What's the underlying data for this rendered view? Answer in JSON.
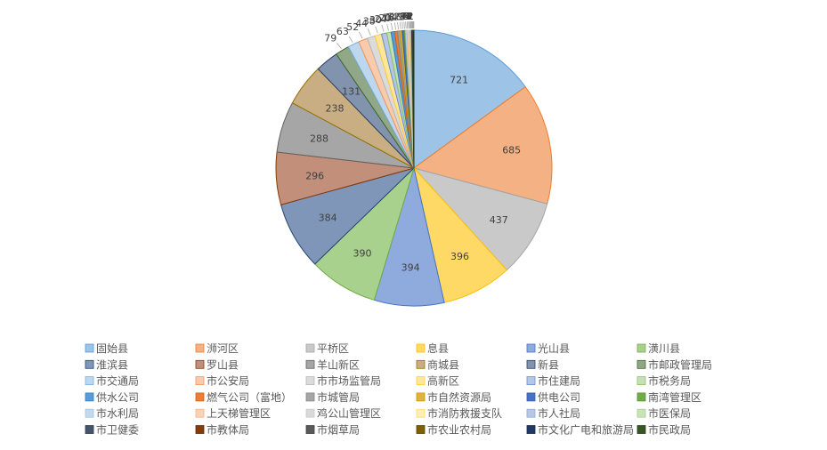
{
  "chart_data": {
    "type": "pie",
    "title": "",
    "legend_position": "bottom",
    "categories": [
      "固始县",
      "浉河区",
      "平桥区",
      "息县",
      "光山县",
      "潢川县",
      "淮滨县",
      "罗山县",
      "羊山新区",
      "商城县",
      "新县",
      "市邮政管理局",
      "市交通局",
      "市公安局",
      "市市场监管局",
      "高新区",
      "市住建局",
      "市税务局",
      "供水公司",
      "燃气公司（富地）",
      "市城管局",
      "市自然资源局",
      "供电公司",
      "南湾管理区",
      "市水利局",
      "上天梯管理区",
      "鸡公山管理区",
      "市消防救援支队",
      "市人社局",
      "市医保局",
      "市卫健委",
      "市教体局",
      "市烟草局",
      "市农业农村局",
      "市文化广电和旅游局",
      "市民政局"
    ],
    "values": [
      721,
      685,
      437,
      396,
      394,
      390,
      384,
      296,
      288,
      238,
      131,
      79,
      63,
      52,
      44,
      38,
      30,
      24,
      20,
      16,
      14,
      12,
      10,
      9,
      8,
      7,
      6,
      5,
      4,
      4,
      3,
      3,
      2,
      2,
      2,
      1
    ],
    "data_labels": [
      "721",
      "685",
      "437",
      "396",
      "394",
      "390",
      "384",
      "296",
      "288",
      "238",
      "131",
      "79",
      "63",
      "52",
      "44",
      "38",
      "30",
      "24",
      "20",
      "16",
      "14",
      "12",
      "10",
      "9",
      "8",
      "7",
      "6",
      "5",
      "4",
      "4",
      "3",
      "3",
      "2",
      "2",
      "2",
      "1"
    ],
    "colors": [
      "#9dc3e6",
      "#f4b183",
      "#c9c9c9",
      "#ffd966",
      "#8faadc",
      "#a9d18e",
      "#7f96b8",
      "#c18f7a",
      "#a6a6a6",
      "#c9ae84",
      "#8294ad",
      "#91a888",
      "#bdd7ee",
      "#f8cbad",
      "#dbdbdb",
      "#ffe699",
      "#b4c7e7",
      "#c5e0b4",
      "#5b9bd5",
      "#ed7d31",
      "#a5a5a5",
      "#e0b23e",
      "#4472c4",
      "#70ad47",
      "#c6d9ec",
      "#f9d3b8",
      "#d9d9d9",
      "#fff0b3",
      "#b7c7e2",
      "#c9e3b8",
      "#44546a",
      "#843c0c",
      "#595959",
      "#7f6000",
      "#203864",
      "#375623"
    ],
    "stroke_colors": [
      "#5b9bd5",
      "#ed7d31",
      "#a5a5a5",
      "#ffc000",
      "#4472c4",
      "#70ad47",
      "#264478",
      "#843c0c",
      "#636363",
      "#997300",
      "#2a3e66",
      "#43682b",
      "#7cafdd",
      "#f1975a",
      "#b7b7b7",
      "#ffcd33",
      "#698ed0",
      "#8cc168",
      "#327dc2",
      "#d26012",
      "#848484",
      "#cc9a00",
      "#3560a8",
      "#5a9038",
      "#9dc3e6",
      "#f4b183",
      "#c9c9c9",
      "#ffd966",
      "#8faadc",
      "#a9d18e",
      "#2f3b4b",
      "#5f2b09",
      "#3f3f3f",
      "#5a4400",
      "#16284a",
      "#27401a"
    ]
  }
}
